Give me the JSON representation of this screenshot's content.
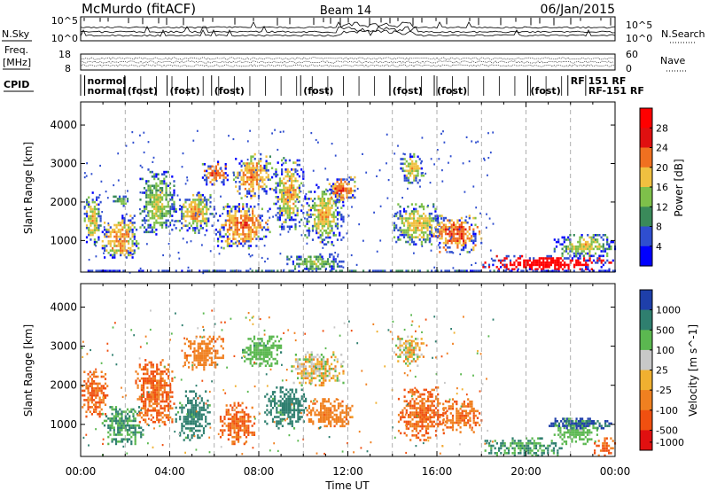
{
  "header": {
    "station": "McMurdo (fitACF)",
    "beam": "Beam 14",
    "date": "06/Jan/2015"
  },
  "side_labels": {
    "n_sky": "N.Sky",
    "n_search": "N.Search",
    "freq": "Freq.",
    "freq_unit": "[MHz]",
    "nave": "Nave",
    "cpid": "CPID"
  },
  "noise_panel": {
    "left_ticks": [
      "10^5",
      "10^0"
    ],
    "right_ticks": [
      "10^5",
      "10^0"
    ]
  },
  "freq_panel": {
    "left_ticks": [
      "18",
      "8"
    ],
    "right_ticks": [
      "60",
      "0"
    ]
  },
  "cpid_panel": {
    "labels": [
      {
        "text": "normol",
        "t": 0.3,
        "row": 0
      },
      {
        "text": "normal",
        "t": 0.3,
        "row": 1
      },
      {
        "text": "(fost)",
        "t": 2.1,
        "row": 1
      },
      {
        "text": "(fost)",
        "t": 4.0,
        "row": 1
      },
      {
        "text": "(fost)",
        "t": 6.0,
        "row": 1
      },
      {
        "text": "(fost)",
        "t": 10.0,
        "row": 1
      },
      {
        "text": "(fost)",
        "t": 14.0,
        "row": 1
      },
      {
        "text": "(fost)",
        "t": 16.0,
        "row": 1
      },
      {
        "text": "(fost)",
        "t": 20.2,
        "row": 1
      },
      {
        "text": "RF 151 RF",
        "t": 22.0,
        "row": 0
      },
      {
        "text": "RF-151 RF",
        "t": 22.8,
        "row": 1
      }
    ]
  },
  "chart_data": [
    {
      "type": "heatmap",
      "title": "",
      "xlabel": "",
      "ylabel": "Slant Range [km]",
      "xlim": [
        0,
        24
      ],
      "ylim": [
        180,
        4600
      ],
      "y_ticks": [
        1000,
        2000,
        3000,
        4000
      ],
      "colorbar": {
        "label": "Power [dB]",
        "ticks": [
          4,
          8,
          12,
          16,
          20,
          24,
          28
        ],
        "range": [
          0,
          30
        ],
        "colors": [
          "#0000ff",
          "#2f4ecf",
          "#3a8a5a",
          "#7ec04a",
          "#f0c040",
          "#f07020",
          "#e01010",
          "#ff0000"
        ]
      },
      "regions": [
        {
          "t0": 0.1,
          "t1": 0.9,
          "r0": 900,
          "r1": 2300,
          "level": 13
        },
        {
          "t0": 0.9,
          "t1": 2.6,
          "r0": 500,
          "r1": 1700,
          "level": 15
        },
        {
          "t0": 1.4,
          "t1": 2.2,
          "r0": 1900,
          "r1": 2200,
          "level": 10
        },
        {
          "t0": 2.6,
          "t1": 4.2,
          "r0": 1100,
          "r1": 2900,
          "level": 11
        },
        {
          "t0": 4.2,
          "t1": 6.0,
          "r0": 1200,
          "r1": 2300,
          "level": 14
        },
        {
          "t0": 5.4,
          "t1": 6.6,
          "r0": 2400,
          "r1": 3100,
          "level": 18
        },
        {
          "t0": 6.0,
          "t1": 8.5,
          "r0": 800,
          "r1": 2000,
          "level": 17
        },
        {
          "t0": 6.8,
          "t1": 8.6,
          "r0": 2100,
          "r1": 3300,
          "level": 16
        },
        {
          "t0": 8.6,
          "t1": 10.0,
          "r0": 1300,
          "r1": 3200,
          "level": 14
        },
        {
          "t0": 10.0,
          "t1": 11.8,
          "r0": 900,
          "r1": 2500,
          "level": 13
        },
        {
          "t0": 9.2,
          "t1": 11.8,
          "r0": 200,
          "r1": 700,
          "level": 9
        },
        {
          "t0": 11.0,
          "t1": 12.4,
          "r0": 2000,
          "r1": 2700,
          "level": 18
        },
        {
          "t0": 14.3,
          "t1": 15.4,
          "r0": 2500,
          "r1": 3300,
          "level": 13
        },
        {
          "t0": 14.0,
          "t1": 16.2,
          "r0": 900,
          "r1": 2000,
          "level": 13
        },
        {
          "t0": 15.6,
          "t1": 18.0,
          "r0": 700,
          "r1": 1700,
          "level": 18
        },
        {
          "t0": 18.0,
          "t1": 24.0,
          "r0": 200,
          "r1": 650,
          "level": 28
        },
        {
          "t0": 21.2,
          "t1": 24.0,
          "r0": 600,
          "r1": 1200,
          "level": 12
        },
        {
          "t0": 0.0,
          "t1": 24.0,
          "r0": 180,
          "r1": 260,
          "level": 6
        }
      ]
    },
    {
      "type": "heatmap",
      "title": "",
      "xlabel": "Time UT",
      "ylabel": "Slant Range [km]",
      "xlim": [
        0,
        24
      ],
      "ylim": [
        180,
        4600
      ],
      "y_ticks": [
        1000,
        2000,
        3000,
        4000
      ],
      "x_tick_labels": [
        "00:00",
        "04:00",
        "08:00",
        "12:00",
        "16:00",
        "20:00",
        "00:00"
      ],
      "x_tick_values": [
        0,
        4,
        8,
        12,
        16,
        20,
        24
      ],
      "colorbar": {
        "label": "Velocity [m s^-1]",
        "ticks": [
          1000,
          500,
          100,
          25,
          -25,
          -100,
          -500,
          -1000
        ],
        "colors": [
          "#1e3faa",
          "#2f7f6f",
          "#5bb850",
          "#c8c8c8",
          "#f0b030",
          "#f08020",
          "#f05010",
          "#e01010"
        ]
      },
      "regions": [
        {
          "t0": 0.0,
          "t1": 1.2,
          "r0": 1200,
          "r1": 2400,
          "level": -300
        },
        {
          "t0": 0.9,
          "t1": 2.8,
          "r0": 500,
          "r1": 1500,
          "level": 300
        },
        {
          "t0": 2.4,
          "t1": 4.2,
          "r0": 1000,
          "r1": 2700,
          "level": -300
        },
        {
          "t0": 4.2,
          "t1": 5.8,
          "r0": 600,
          "r1": 1900,
          "level": 400
        },
        {
          "t0": 4.6,
          "t1": 6.4,
          "r0": 2400,
          "r1": 3300,
          "level": -200
        },
        {
          "t0": 6.2,
          "t1": 7.8,
          "r0": 500,
          "r1": 1600,
          "level": -300
        },
        {
          "t0": 7.2,
          "t1": 9.0,
          "r0": 2500,
          "r1": 3300,
          "level": 200
        },
        {
          "t0": 8.2,
          "t1": 10.2,
          "r0": 900,
          "r1": 2000,
          "level": 400
        },
        {
          "t0": 9.4,
          "t1": 11.8,
          "r0": 2000,
          "r1": 2900,
          "level": 0
        },
        {
          "t0": 10.0,
          "t1": 12.2,
          "r0": 900,
          "r1": 1700,
          "level": -200
        },
        {
          "t0": 14.0,
          "t1": 15.4,
          "r0": 2500,
          "r1": 3300,
          "level": 0
        },
        {
          "t0": 14.2,
          "t1": 16.4,
          "r0": 600,
          "r1": 2000,
          "level": -300
        },
        {
          "t0": 16.2,
          "t1": 18.0,
          "r0": 800,
          "r1": 1700,
          "level": -250
        },
        {
          "t0": 18.0,
          "t1": 21.6,
          "r0": 200,
          "r1": 700,
          "level": 300
        },
        {
          "t0": 21.2,
          "t1": 23.2,
          "r0": 500,
          "r1": 1200,
          "level": 150
        },
        {
          "t0": 23.0,
          "t1": 24.0,
          "r0": 200,
          "r1": 700,
          "level": -300
        },
        {
          "t0": 20.8,
          "t1": 24.0,
          "r0": 900,
          "r1": 1200,
          "level": 800
        }
      ]
    }
  ],
  "colors": {
    "axis": "#000000",
    "grid_dash": "#9a9a9a"
  }
}
